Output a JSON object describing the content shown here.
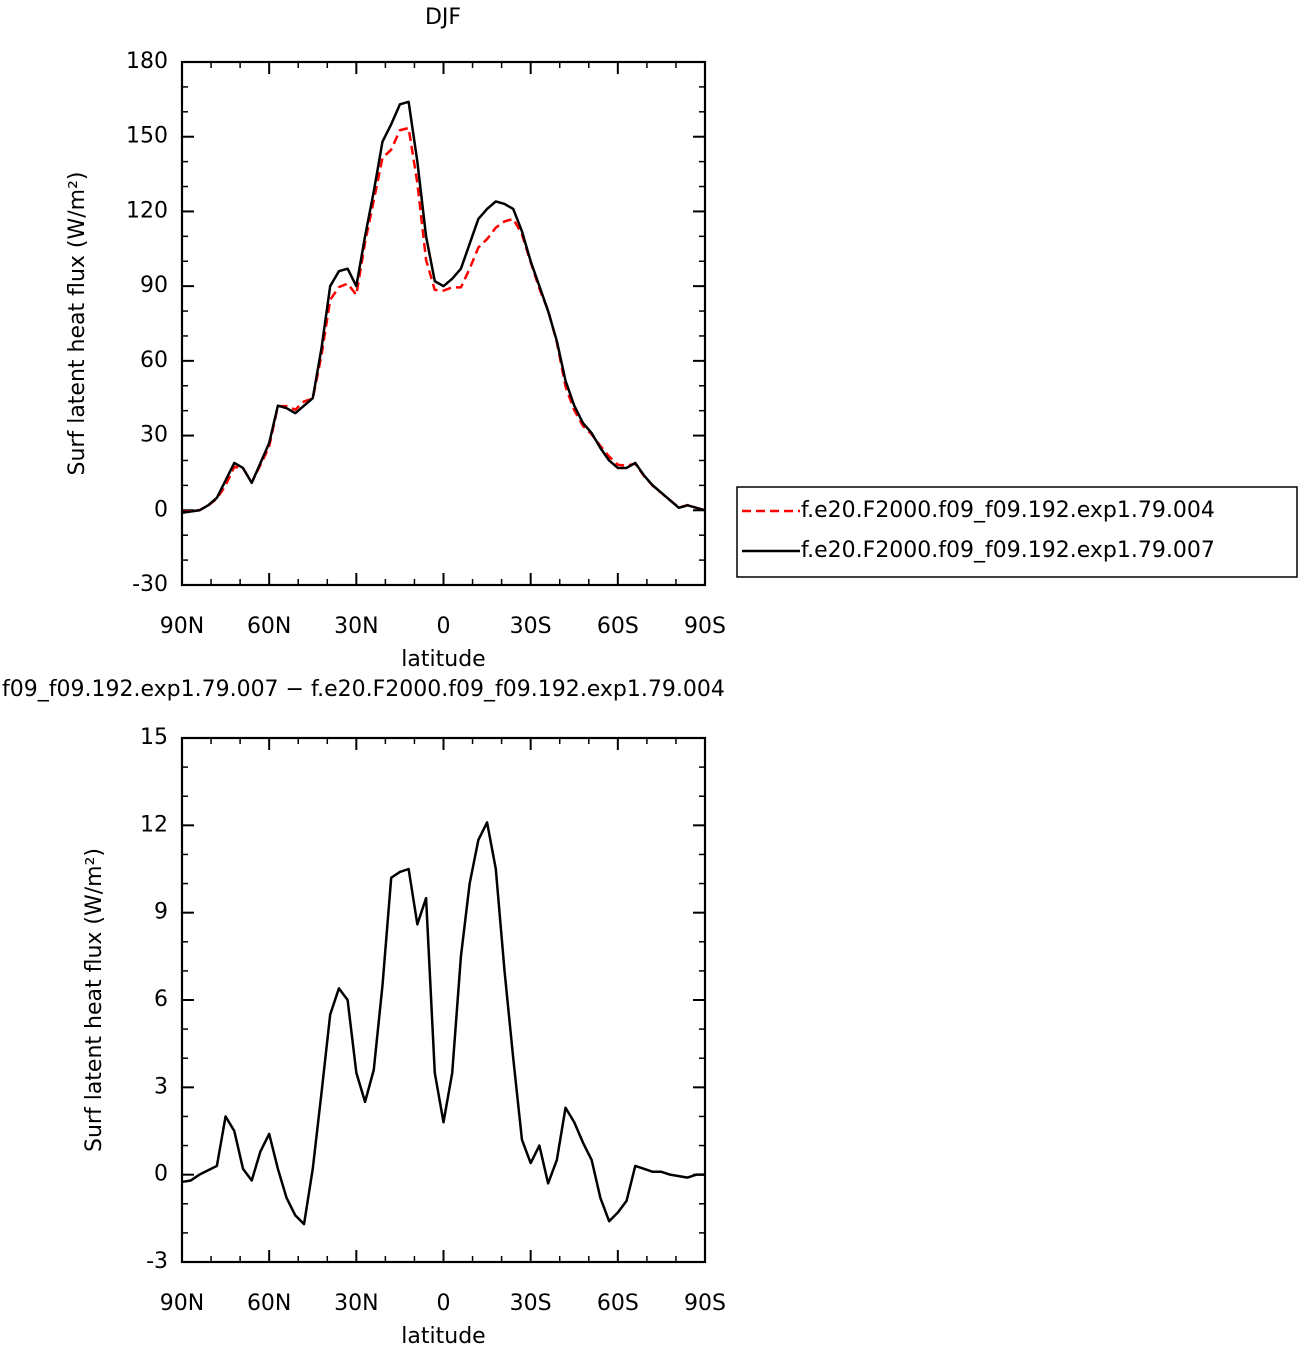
{
  "chart_data": [
    {
      "type": "line",
      "title": "DJF",
      "xlabel": "latitude",
      "ylabel": "Surf latent heat flux (W/m²)",
      "x": [
        90,
        87,
        84,
        81,
        78,
        75,
        72,
        69,
        66,
        63,
        60,
        57,
        54,
        51,
        48,
        45,
        42,
        39,
        36,
        33,
        30,
        27,
        24,
        21,
        18,
        15,
        12,
        9,
        6,
        3,
        0,
        -3,
        -6,
        -9,
        -12,
        -15,
        -18,
        -21,
        -24,
        -27,
        -30,
        -33,
        -36,
        -39,
        -42,
        -45,
        -48,
        -51,
        -54,
        -57,
        -60,
        -63,
        -66,
        -69,
        -72,
        -75,
        -78,
        -81,
        -84,
        -87,
        -90
      ],
      "xlim": [
        90,
        -90
      ],
      "xticks": [
        {
          "value": 90,
          "label": "90N"
        },
        {
          "value": 60,
          "label": "60N"
        },
        {
          "value": 30,
          "label": "30N"
        },
        0,
        {
          "value": -30,
          "label": "30S"
        },
        {
          "value": -60,
          "label": "60S"
        },
        {
          "value": -90,
          "label": "90S"
        }
      ],
      "ylim": [
        -30,
        180
      ],
      "yticks": [
        -30,
        0,
        30,
        60,
        90,
        120,
        150,
        180
      ],
      "legend": "right",
      "series": [
        {
          "name": "f.e20.F2000.f09_f09.192.exp1.79.004",
          "color": "#ff0000",
          "line_style": "dashed",
          "values": [
            -0.8,
            -0.3,
            0,
            1.9,
            4.7,
            10,
            17.5,
            16.8,
            11.2,
            18.2,
            25.6,
            41.8,
            41.8,
            40.4,
            43.7,
            44.8,
            62.2,
            84.5,
            89.6,
            91,
            86.5,
            107.5,
            124.4,
            141.5,
            144.8,
            152.6,
            153.5,
            131.4,
            100.5,
            88.5,
            88.2,
            89.5,
            89.5,
            97,
            105.5,
            108.9,
            113.5,
            116,
            117,
            110.8,
            99.6,
            89,
            80.3,
            67.5,
            49.7,
            40.2,
            33.9,
            30.5,
            25.8,
            21.6,
            18.3,
            17.9,
            18.7,
            13.8,
            9.9,
            6.9,
            4,
            1.1,
            2.1,
            1,
            0
          ]
        },
        {
          "name": "f.e20.F2000.f09_f09.192.exp1.79.007",
          "color": "#000000",
          "line_style": "solid",
          "values": [
            -1,
            -0.5,
            0,
            2,
            5,
            12,
            19,
            17,
            11,
            19,
            27,
            42,
            41,
            39,
            42,
            45,
            65,
            90,
            96,
            97,
            90,
            110,
            128,
            148,
            155,
            163,
            164,
            140,
            110,
            92,
            90,
            93,
            97,
            107,
            117,
            121,
            124,
            123,
            121,
            112,
            100,
            90,
            80,
            68,
            52,
            42,
            35,
            31,
            25,
            20,
            17,
            17,
            19,
            14,
            10,
            7,
            4,
            1,
            2,
            1,
            0
          ]
        }
      ]
    },
    {
      "type": "line",
      "title": "f09_f09.192.exp1.79.007 − f.e20.F2000.f09_f09.192.exp1.79.004",
      "xlabel": "latitude",
      "ylabel": "Surf latent heat flux (W/m²)",
      "x": [
        90,
        87,
        84,
        81,
        78,
        75,
        72,
        69,
        66,
        63,
        60,
        57,
        54,
        51,
        48,
        45,
        42,
        39,
        36,
        33,
        30,
        27,
        24,
        21,
        18,
        15,
        12,
        9,
        6,
        3,
        0,
        -3,
        -6,
        -9,
        -12,
        -15,
        -18,
        -21,
        -24,
        -27,
        -30,
        -33,
        -36,
        -39,
        -42,
        -45,
        -48,
        -51,
        -54,
        -57,
        -60,
        -63,
        -66,
        -69,
        -72,
        -75,
        -78,
        -81,
        -84,
        -87,
        -90
      ],
      "xlim": [
        90,
        -90
      ],
      "xticks": [
        {
          "value": 90,
          "label": "90N"
        },
        {
          "value": 60,
          "label": "60N"
        },
        {
          "value": 30,
          "label": "30N"
        },
        0,
        {
          "value": -30,
          "label": "30S"
        },
        {
          "value": -60,
          "label": "60S"
        },
        {
          "value": -90,
          "label": "90S"
        }
      ],
      "ylim": [
        -3,
        15
      ],
      "yticks": [
        -3,
        0,
        3,
        6,
        9,
        12,
        15
      ],
      "series": [
        {
          "color": "#000000",
          "line_style": "solid",
          "values": [
            -0.25,
            -0.2,
            0,
            0.15,
            0.3,
            2,
            1.5,
            0.2,
            -0.2,
            0.8,
            1.4,
            0.2,
            -0.8,
            -1.4,
            -1.7,
            0.2,
            2.8,
            5.5,
            6.4,
            6,
            3.5,
            2.5,
            3.6,
            6.5,
            10.2,
            10.4,
            10.5,
            8.6,
            9.5,
            3.5,
            1.8,
            3.5,
            7.5,
            10,
            11.5,
            12.1,
            10.5,
            7,
            4,
            1.2,
            0.4,
            1,
            -0.3,
            0.5,
            2.3,
            1.8,
            1.1,
            0.5,
            -0.8,
            -1.6,
            -1.3,
            -0.9,
            0.3,
            0.2,
            0.1,
            0.1,
            0,
            -0.05,
            -0.1,
            0,
            0
          ]
        }
      ]
    }
  ]
}
